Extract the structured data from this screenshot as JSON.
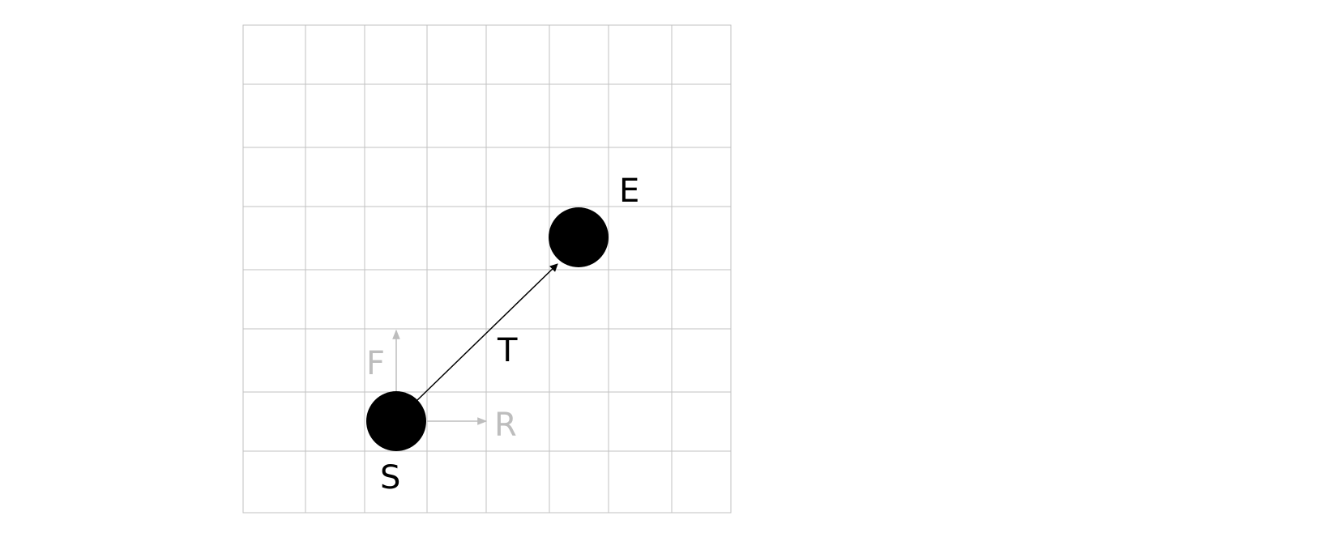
{
  "colors": {
    "grid": "#c2c2c2",
    "primary": "#000000",
    "secondary": "#bdbdbd"
  },
  "labels": {
    "start": "S",
    "end": "E",
    "transform": "T",
    "forward": "F",
    "right": "R"
  }
}
